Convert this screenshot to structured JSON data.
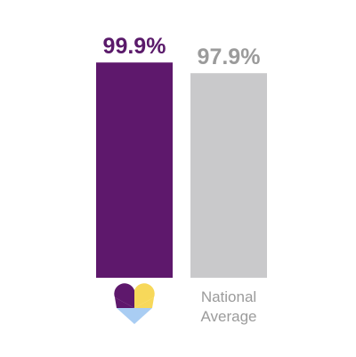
{
  "chart_data": {
    "type": "bar",
    "categories": [
      null,
      "National Average"
    ],
    "values": [
      99.9,
      97.9
    ],
    "value_labels": [
      "99.9%",
      "97.9%"
    ],
    "colors": [
      "#5e186c",
      "#c9c9cb"
    ],
    "label_colors": [
      "#5a1a6a",
      "#9b9b9b"
    ],
    "ylim": [
      59.6,
      100
    ]
  }
}
